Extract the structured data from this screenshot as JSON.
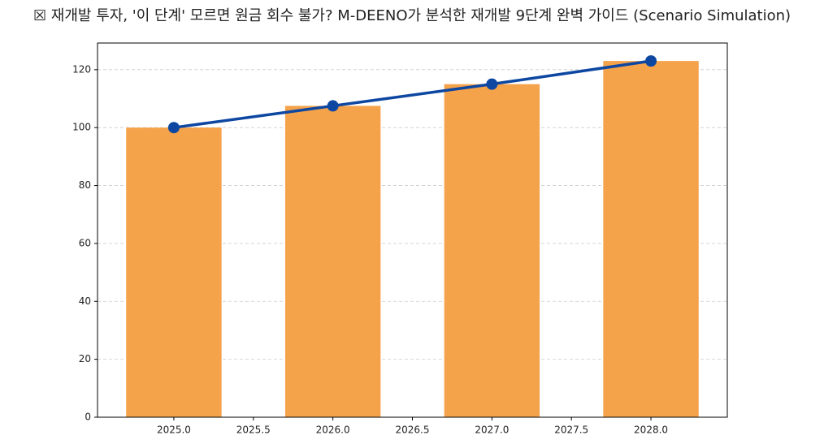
{
  "chart_data": {
    "type": "bar",
    "title": "☒ 재개발 투자, '이 단계' 모르면 원금 회수 불가? M-DEENO가 분석한 재개발 9단계 완벽 가이드 (Scenario Simulation)",
    "x": [
      2025,
      2026,
      2027,
      2028
    ],
    "series": [
      {
        "type": "bar",
        "color": "#f5a34b",
        "values": [
          100,
          107.5,
          115,
          123
        ]
      },
      {
        "type": "line",
        "color": "#0d47a1",
        "values": [
          100,
          107.5,
          115,
          123
        ]
      }
    ],
    "xlim": [
      2024.52,
      2028.48
    ],
    "xticks": [
      {
        "value": 2025,
        "label": "2025.0"
      },
      {
        "value": 2025.5,
        "label": "2025.5"
      },
      {
        "value": 2026,
        "label": "2026.0"
      },
      {
        "value": 2026.5,
        "label": "2026.5"
      },
      {
        "value": 2027,
        "label": "2027.0"
      },
      {
        "value": 2027.5,
        "label": "2027.5"
      },
      {
        "value": 2028,
        "label": "2028.0"
      }
    ],
    "ylim": [
      0,
      129.2
    ],
    "yticks": [
      0,
      20,
      40,
      60,
      80,
      100,
      120
    ],
    "grid": true
  }
}
